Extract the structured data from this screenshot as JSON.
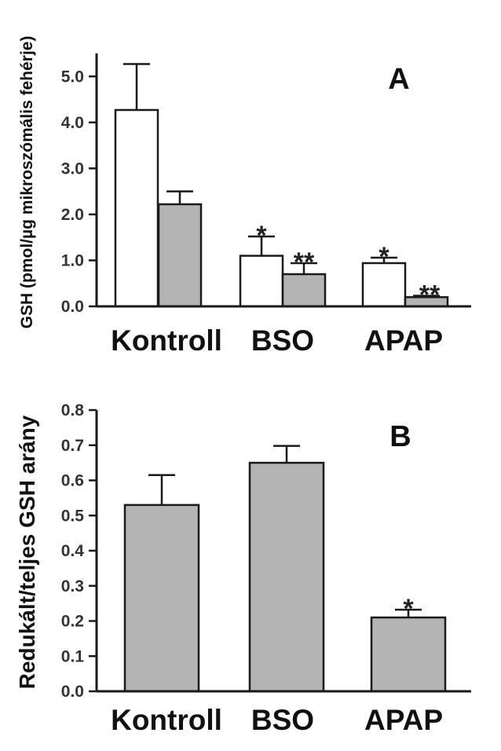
{
  "chart_data": [
    {
      "type": "bar",
      "panel": "A",
      "ylabel": "GSH (pmol/µg mikroszómális fehérje)",
      "ylim": [
        0,
        5.5
      ],
      "yticks": [
        "0.0",
        "1.0",
        "2.0",
        "3.0",
        "4.0",
        "5.0"
      ],
      "categories": [
        "Kontroll",
        "BSO",
        "APAP"
      ],
      "series": [
        {
          "color": "#ffffff",
          "values": [
            4.27,
            1.1,
            0.94
          ],
          "errors": [
            1.0,
            0.42,
            0.12
          ],
          "annotations": [
            "",
            "*",
            "*"
          ]
        },
        {
          "color": "#b4b4b4",
          "values": [
            2.22,
            0.7,
            0.2
          ],
          "errors": [
            0.28,
            0.24,
            0.03
          ],
          "annotations": [
            "",
            "**",
            "**"
          ]
        }
      ]
    },
    {
      "type": "bar",
      "panel": "B",
      "ylabel": "Redukált/teljes GSH arány",
      "ylim": [
        0,
        0.8
      ],
      "yticks": [
        "0.0",
        "0.1",
        "0.2",
        "0.3",
        "0.4",
        "0.5",
        "0.6",
        "0.7",
        "0.8"
      ],
      "categories": [
        "Kontroll",
        "BSO",
        "APAP"
      ],
      "series": [
        {
          "color": "#b4b4b4",
          "values": [
            0.53,
            0.65,
            0.21
          ],
          "errors": [
            0.085,
            0.048,
            0.022
          ],
          "annotations": [
            "",
            "",
            "*"
          ]
        }
      ]
    }
  ]
}
